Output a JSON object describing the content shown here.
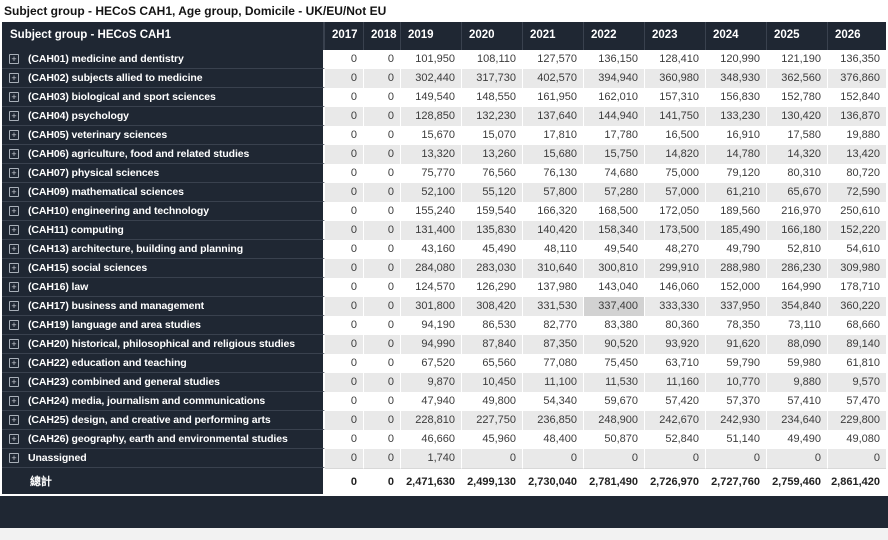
{
  "title": "Subject group - HECoS CAH1, Age group, Domicile - UK/EU/Not EU",
  "colors": {
    "header_bg": "#1f2733",
    "header_text": "#ffffff",
    "row_stripe": "#e9e9e9",
    "highlight_cell": "#d2d2d2",
    "number_text": "#3c3c3c"
  },
  "table": {
    "row_header": "Subject group - HECoS CAH1",
    "expand_icon": "+",
    "years": [
      "2017",
      "2018",
      "2019",
      "2020",
      "2021",
      "2022",
      "2023",
      "2024",
      "2025",
      "2026"
    ],
    "highlighted_cell": {
      "row_label": "(CAH17) business and management",
      "year": "2022"
    },
    "rows": [
      {
        "expandable": true,
        "total": false,
        "label": "(CAH01) medicine and dentistry",
        "values": [
          "0",
          "0",
          "101,950",
          "108,110",
          "127,570",
          "136,150",
          "128,410",
          "120,990",
          "121,190",
          "136,350"
        ]
      },
      {
        "expandable": true,
        "total": false,
        "label": "(CAH02) subjects allied to medicine",
        "values": [
          "0",
          "0",
          "302,440",
          "317,730",
          "402,570",
          "394,940",
          "360,980",
          "348,930",
          "362,560",
          "376,860"
        ]
      },
      {
        "expandable": true,
        "total": false,
        "label": "(CAH03) biological and sport sciences",
        "values": [
          "0",
          "0",
          "149,540",
          "148,550",
          "161,950",
          "162,010",
          "157,310",
          "156,830",
          "152,780",
          "152,840"
        ]
      },
      {
        "expandable": true,
        "total": false,
        "label": "(CAH04) psychology",
        "values": [
          "0",
          "0",
          "128,850",
          "132,230",
          "137,640",
          "144,940",
          "141,750",
          "133,230",
          "130,420",
          "136,870"
        ]
      },
      {
        "expandable": true,
        "total": false,
        "label": "(CAH05) veterinary sciences",
        "values": [
          "0",
          "0",
          "15,670",
          "15,070",
          "17,810",
          "17,780",
          "16,500",
          "16,910",
          "17,580",
          "19,880"
        ]
      },
      {
        "expandable": true,
        "total": false,
        "label": "(CAH06) agriculture, food and related studies",
        "values": [
          "0",
          "0",
          "13,320",
          "13,260",
          "15,680",
          "15,750",
          "14,820",
          "14,780",
          "14,320",
          "13,420"
        ]
      },
      {
        "expandable": true,
        "total": false,
        "label": "(CAH07) physical sciences",
        "values": [
          "0",
          "0",
          "75,770",
          "76,560",
          "76,130",
          "74,680",
          "75,000",
          "79,120",
          "80,310",
          "80,720"
        ]
      },
      {
        "expandable": true,
        "total": false,
        "label": "(CAH09) mathematical sciences",
        "values": [
          "0",
          "0",
          "52,100",
          "55,120",
          "57,800",
          "57,280",
          "57,000",
          "61,210",
          "65,670",
          "72,590"
        ]
      },
      {
        "expandable": true,
        "total": false,
        "label": "(CAH10) engineering and technology",
        "values": [
          "0",
          "0",
          "155,240",
          "159,540",
          "166,320",
          "168,500",
          "172,050",
          "189,560",
          "216,970",
          "250,610"
        ]
      },
      {
        "expandable": true,
        "total": false,
        "label": "(CAH11) computing",
        "values": [
          "0",
          "0",
          "131,400",
          "135,830",
          "140,420",
          "158,340",
          "173,500",
          "185,490",
          "166,180",
          "152,220"
        ]
      },
      {
        "expandable": true,
        "total": false,
        "label": "(CAH13) architecture, building and planning",
        "values": [
          "0",
          "0",
          "43,160",
          "45,490",
          "48,110",
          "49,540",
          "48,270",
          "49,790",
          "52,810",
          "54,610"
        ]
      },
      {
        "expandable": true,
        "total": false,
        "label": "(CAH15) social sciences",
        "values": [
          "0",
          "0",
          "284,080",
          "283,030",
          "310,640",
          "300,810",
          "299,910",
          "288,980",
          "286,230",
          "309,980"
        ]
      },
      {
        "expandable": true,
        "total": false,
        "label": "(CAH16) law",
        "values": [
          "0",
          "0",
          "124,570",
          "126,290",
          "137,980",
          "143,040",
          "146,060",
          "152,000",
          "164,990",
          "178,710"
        ]
      },
      {
        "expandable": true,
        "total": false,
        "label": "(CAH17) business and management",
        "values": [
          "0",
          "0",
          "301,800",
          "308,420",
          "331,530",
          "337,400",
          "333,330",
          "337,950",
          "354,840",
          "360,220"
        ]
      },
      {
        "expandable": true,
        "total": false,
        "label": "(CAH19) language and area studies",
        "values": [
          "0",
          "0",
          "94,190",
          "86,530",
          "82,770",
          "83,380",
          "80,360",
          "78,350",
          "73,110",
          "68,660"
        ]
      },
      {
        "expandable": true,
        "total": false,
        "label": "(CAH20) historical, philosophical and religious studies",
        "values": [
          "0",
          "0",
          "94,990",
          "87,840",
          "87,350",
          "90,520",
          "93,920",
          "91,620",
          "88,090",
          "89,140"
        ]
      },
      {
        "expandable": true,
        "total": false,
        "label": "(CAH22) education and teaching",
        "values": [
          "0",
          "0",
          "67,520",
          "65,560",
          "77,080",
          "75,450",
          "63,710",
          "59,790",
          "59,980",
          "61,810"
        ]
      },
      {
        "expandable": true,
        "total": false,
        "label": "(CAH23) combined and general studies",
        "values": [
          "0",
          "0",
          "9,870",
          "10,450",
          "11,100",
          "11,530",
          "11,160",
          "10,770",
          "9,880",
          "9,570"
        ]
      },
      {
        "expandable": true,
        "total": false,
        "label": "(CAH24) media, journalism and communications",
        "values": [
          "0",
          "0",
          "47,940",
          "49,800",
          "54,340",
          "59,670",
          "57,420",
          "57,370",
          "57,410",
          "57,470"
        ]
      },
      {
        "expandable": true,
        "total": false,
        "label": "(CAH25) design, and creative and performing arts",
        "values": [
          "0",
          "0",
          "228,810",
          "227,750",
          "236,850",
          "248,900",
          "242,670",
          "242,930",
          "234,640",
          "229,800"
        ]
      },
      {
        "expandable": true,
        "total": false,
        "label": "(CAH26) geography, earth and environmental studies",
        "values": [
          "0",
          "0",
          "46,660",
          "45,960",
          "48,400",
          "50,870",
          "52,840",
          "51,140",
          "49,490",
          "49,080"
        ]
      },
      {
        "expandable": true,
        "total": false,
        "label": "Unassigned",
        "values": [
          "0",
          "0",
          "1,740",
          "0",
          "0",
          "0",
          "0",
          "0",
          "0",
          "0"
        ]
      },
      {
        "expandable": false,
        "total": true,
        "label": "總計",
        "values": [
          "0",
          "0",
          "2,471,630",
          "2,499,130",
          "2,730,040",
          "2,781,490",
          "2,726,970",
          "2,727,760",
          "2,759,460",
          "2,861,420"
        ]
      }
    ]
  }
}
